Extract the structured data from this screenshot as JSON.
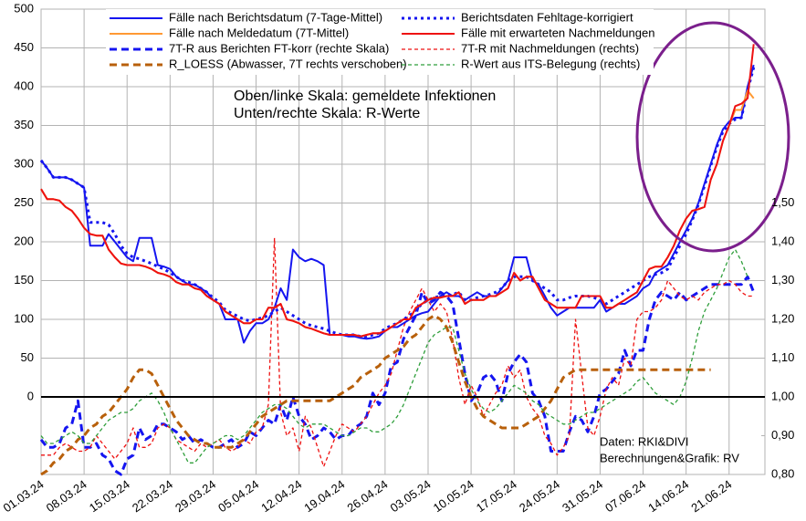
{
  "chart_data": {
    "type": "line",
    "annotations": [
      "Oben/linke Skala: gemeldete Infektionen",
      "Unten/rechte Skala: R-Werte",
      "Daten: RKI&DIVI",
      "Berechnungen&Grafik: RV"
    ],
    "categories": [
      "01.03.24",
      null,
      null,
      null,
      null,
      null,
      null,
      "08.03.24",
      null,
      null,
      null,
      null,
      null,
      null,
      "15.03.24",
      null,
      null,
      null,
      null,
      null,
      null,
      "22.03.24",
      null,
      null,
      null,
      null,
      null,
      null,
      "29.03.24",
      null,
      null,
      null,
      null,
      null,
      null,
      "05.04.24",
      null,
      null,
      null,
      null,
      null,
      null,
      "12.04.24",
      null,
      null,
      null,
      null,
      null,
      null,
      "19.04.24",
      null,
      null,
      null,
      null,
      null,
      null,
      "26.04.24",
      null,
      null,
      null,
      null,
      null,
      null,
      "03.05.24",
      null,
      null,
      null,
      null,
      null,
      null,
      "10.05.24",
      null,
      null,
      null,
      null,
      null,
      null,
      "17.05.24",
      null,
      null,
      null,
      null,
      null,
      null,
      "24.05.24",
      null,
      null,
      null,
      null,
      null,
      null,
      "31.05.24",
      null,
      null,
      null,
      null,
      null,
      null,
      "07.06.24",
      null,
      null,
      null,
      null,
      null,
      null,
      "14.06.24",
      null,
      null,
      null,
      null,
      null,
      null,
      "21.06.24",
      null,
      null,
      null,
      null
    ],
    "ylim": [
      -100,
      500
    ],
    "yticks": [
      0,
      50,
      100,
      150,
      200,
      250,
      300,
      350,
      400,
      450,
      500
    ],
    "y2lim": [
      0.8,
      2.0
    ],
    "y2ticks": [
      {
        "value": 0.8,
        "label": "0,80"
      },
      {
        "value": 0.9,
        "label": "0,90"
      },
      {
        "value": 1.0,
        "label": "1,00"
      },
      {
        "value": 1.1,
        "label": "1,10"
      },
      {
        "value": 1.2,
        "label": "1,20"
      },
      {
        "value": 1.3,
        "label": "1,30"
      },
      {
        "value": 1.4,
        "label": "1,40"
      },
      {
        "value": 1.5,
        "label": "1,50"
      }
    ],
    "grid": true,
    "series": [
      {
        "name": "Fälle nach Berichtsdatum (7-Tage-Mittel)",
        "color": "#1515f0",
        "style": "solid",
        "values": [
          305,
          295,
          283,
          283,
          283,
          280,
          275,
          270,
          195,
          195,
          195,
          210,
          200,
          190,
          180,
          175,
          205,
          205,
          205,
          170,
          168,
          165,
          155,
          150,
          145,
          145,
          140,
          135,
          125,
          120,
          100,
          100,
          100,
          70,
          85,
          95,
          95,
          100,
          115,
          140,
          125,
          190,
          180,
          175,
          178,
          175,
          170,
          80,
          80,
          80,
          78,
          78,
          76,
          75,
          76,
          78,
          85,
          90,
          90,
          95,
          100,
          105,
          108,
          110,
          120,
          130,
          135,
          130,
          130,
          125,
          130,
          135,
          130,
          130,
          130,
          140,
          150,
          180,
          180,
          180,
          150,
          145,
          130,
          115,
          105,
          110,
          115,
          115,
          115,
          115,
          115,
          125,
          110,
          115,
          120,
          120,
          125,
          130,
          140,
          145,
          160,
          165,
          170,
          185,
          200,
          215,
          230,
          250,
          275,
          300,
          325,
          345,
          355,
          360,
          360,
          400,
          428
        ]
      },
      {
        "name": "Berichtsdaten Fehltage-korrigiert",
        "color": "#1515f0",
        "style": "dotted",
        "values": [
          305,
          295,
          283,
          283,
          283,
          280,
          275,
          270,
          225,
          225,
          225,
          222,
          210,
          195,
          185,
          180,
          178,
          175,
          172,
          168,
          165,
          160,
          155,
          150,
          148,
          145,
          140,
          135,
          128,
          122,
          112,
          108,
          104,
          100,
          98,
          100,
          102,
          105,
          110,
          115,
          110,
          105,
          100,
          95,
          92,
          90,
          88,
          85,
          82,
          80,
          80,
          80,
          78,
          78,
          80,
          82,
          88,
          92,
          95,
          100,
          105,
          112,
          120,
          125,
          128,
          130,
          130,
          132,
          135,
          125,
          125,
          128,
          130,
          132,
          135,
          140,
          150,
          155,
          155,
          155,
          150,
          145,
          140,
          135,
          125,
          125,
          128,
          130,
          130,
          130,
          128,
          125,
          120,
          125,
          130,
          135,
          140,
          145,
          150,
          155,
          158,
          160,
          165,
          180,
          195,
          210,
          228,
          248,
          272,
          298,
          322,
          342,
          352,
          358,
          360,
          395,
          425
        ]
      },
      {
        "name": "Fälle nach Meldedatum (7T-Mittel)",
        "color": "#ff9933",
        "style": "solid",
        "values": [
          268,
          255,
          255,
          253,
          245,
          240,
          230,
          218,
          210,
          208,
          208,
          190,
          180,
          172,
          170,
          170,
          170,
          168,
          165,
          160,
          158,
          155,
          148,
          145,
          145,
          140,
          138,
          130,
          125,
          120,
          110,
          105,
          100,
          95,
          95,
          100,
          100,
          115,
          115,
          120,
          100,
          98,
          95,
          90,
          88,
          85,
          82,
          80,
          80,
          80,
          80,
          80,
          78,
          80,
          82,
          82,
          85,
          90,
          95,
          100,
          100,
          115,
          120,
          125,
          128,
          128,
          130,
          130,
          135,
          120,
          125,
          125,
          125,
          130,
          130,
          135,
          140,
          160,
          150,
          155,
          155,
          140,
          125,
          120,
          115,
          115,
          115,
          115,
          130,
          130,
          130,
          130,
          115,
          115,
          120,
          125,
          130,
          135,
          150,
          165,
          168,
          168,
          180,
          195,
          215,
          230,
          240,
          242,
          245,
          280,
          300,
          330,
          350,
          370,
          370,
          395,
          385
        ]
      },
      {
        "name": "Fälle mit erwarteten Nachmeldungen",
        "color": "#ee1111",
        "style": "solid",
        "values": [
          268,
          255,
          255,
          253,
          245,
          240,
          230,
          218,
          210,
          208,
          208,
          190,
          180,
          172,
          170,
          170,
          170,
          168,
          165,
          160,
          158,
          155,
          148,
          145,
          145,
          140,
          138,
          130,
          125,
          120,
          110,
          105,
          100,
          95,
          95,
          100,
          100,
          115,
          115,
          120,
          100,
          98,
          95,
          90,
          88,
          85,
          82,
          80,
          80,
          80,
          80,
          80,
          78,
          80,
          82,
          82,
          85,
          90,
          95,
          100,
          100,
          115,
          120,
          125,
          128,
          128,
          130,
          130,
          135,
          120,
          125,
          125,
          125,
          130,
          130,
          135,
          140,
          160,
          150,
          155,
          155,
          140,
          125,
          120,
          115,
          115,
          115,
          115,
          130,
          130,
          130,
          130,
          115,
          115,
          120,
          125,
          130,
          135,
          150,
          165,
          168,
          168,
          180,
          195,
          215,
          230,
          240,
          242,
          245,
          280,
          300,
          330,
          350,
          375,
          378,
          385,
          455
        ]
      },
      {
        "name": "7T-R aus Berichten FT-korr (rechte Skala)",
        "color": "#1515f0",
        "style": "dashed",
        "axis": "y2",
        "values": [
          0.89,
          0.87,
          0.87,
          0.88,
          0.92,
          0.93,
          0.99,
          0.87,
          0.87,
          0.88,
          0.85,
          0.84,
          0.81,
          0.8,
          0.84,
          0.85,
          0.92,
          0.89,
          0.9,
          0.93,
          0.93,
          0.92,
          0.91,
          0.89,
          0.9,
          0.88,
          0.89,
          0.88,
          0.87,
          0.87,
          0.88,
          0.89,
          0.87,
          0.88,
          0.91,
          0.9,
          0.92,
          0.94,
          0.93,
          0.98,
          0.94,
          1.0,
          0.95,
          0.93,
          0.89,
          0.9,
          0.92,
          0.91,
          0.89,
          0.9,
          0.9,
          0.92,
          0.93,
          0.95,
          1.01,
          0.98,
          1.01,
          1.08,
          1.09,
          1.15,
          1.18,
          1.21,
          1.27,
          1.24,
          1.25,
          1.27,
          1.26,
          1.24,
          1.15,
          1.06,
          0.99,
          1.01,
          1.05,
          1.06,
          1.04,
          0.99,
          1.06,
          1.09,
          1.11,
          1.09,
          1.01,
          0.99,
          0.95,
          0.86,
          0.86,
          0.86,
          0.91,
          0.95,
          0.94,
          0.91,
          0.95,
          1.01,
          1.02,
          1.04,
          1.06,
          1.12,
          1.08,
          1.12,
          1.12,
          1.2,
          1.25,
          1.27,
          1.26,
          1.25,
          1.27,
          1.25,
          1.26,
          1.27,
          1.28,
          1.29,
          1.29,
          1.29,
          1.29,
          1.29,
          1.29,
          1.31,
          1.27
        ]
      },
      {
        "name": "7T-R mit Nachmeldungen (rechts)",
        "color": "#ee1111",
        "style": "dashed-thin",
        "axis": "y2",
        "values": [
          0.85,
          0.85,
          0.85,
          0.87,
          0.88,
          0.87,
          0.86,
          0.86,
          0.87,
          0.9,
          0.88,
          0.86,
          0.84,
          0.86,
          0.88,
          0.92,
          0.87,
          0.87,
          0.88,
          0.92,
          0.93,
          0.92,
          0.89,
          0.88,
          0.87,
          0.86,
          0.88,
          0.87,
          0.88,
          0.89,
          0.87,
          0.86,
          0.87,
          0.89,
          0.88,
          0.91,
          0.92,
          0.98,
          1.41,
          0.96,
          0.9,
          0.92,
          0.86,
          0.95,
          0.92,
          0.87,
          0.82,
          0.86,
          0.9,
          0.93,
          0.92,
          0.91,
          0.93,
          0.95,
          0.98,
          1.01,
          1.03,
          1.06,
          1.12,
          1.18,
          1.22,
          1.25,
          1.28,
          1.25,
          1.22,
          1.24,
          1.22,
          1.15,
          1.05,
          0.98,
          1.03,
          1.0,
          0.95,
          0.98,
          1.01,
          1.03,
          1.08,
          1.05,
          1.07,
          1.0,
          0.97,
          0.95,
          0.9,
          0.88,
          0.85,
          0.87,
          0.9,
          1.2,
          1.06,
          0.92,
          0.9,
          0.95,
          1.02,
          1.05,
          1.03,
          1.1,
          1.08,
          1.2,
          1.22,
          1.22,
          1.23,
          1.25,
          1.3,
          1.28,
          1.26,
          1.25,
          1.26,
          1.25,
          1.27,
          1.28,
          1.29,
          1.29,
          1.3,
          1.29,
          1.27,
          1.26,
          1.26
        ]
      },
      {
        "name": "R_LOESS (Abwasser, 7T rechts verschoben)",
        "color": "#b8600b",
        "style": "dashed",
        "axis": "y2",
        "values": [
          0.8,
          0.81,
          0.83,
          0.84,
          0.86,
          0.87,
          0.89,
          0.9,
          0.92,
          0.93,
          0.95,
          0.96,
          0.98,
          1.0,
          1.02,
          1.05,
          1.07,
          1.07,
          1.06,
          1.03,
          1.0,
          0.97,
          0.94,
          0.92,
          0.9,
          0.89,
          0.88,
          0.88,
          0.87,
          0.87,
          0.87,
          0.87,
          0.88,
          0.89,
          0.91,
          0.93,
          0.95,
          0.96,
          0.97,
          0.98,
          0.99,
          0.99,
          0.99,
          0.99,
          0.99,
          0.99,
          0.99,
          0.99,
          1.0,
          1.01,
          1.02,
          1.03,
          1.05,
          1.06,
          1.07,
          1.08,
          1.1,
          1.11,
          1.12,
          1.13,
          1.15,
          1.16,
          1.18,
          1.2,
          1.21,
          1.2,
          1.18,
          1.14,
          1.09,
          1.04,
          1.0,
          0.97,
          0.95,
          0.94,
          0.93,
          0.92,
          0.92,
          0.92,
          0.92,
          0.93,
          0.94,
          0.95,
          0.97,
          0.99,
          1.02,
          1.05,
          1.06,
          1.07,
          1.07,
          1.07,
          1.07,
          1.07,
          1.07,
          1.07,
          1.07,
          1.07,
          1.07,
          1.07,
          1.07,
          1.07,
          1.07,
          1.07,
          1.07,
          1.07,
          1.07,
          1.07,
          1.07,
          1.07,
          1.07,
          1.07,
          null,
          null,
          null,
          null,
          null,
          null,
          null
        ]
      },
      {
        "name": "R-Wert aus ITS-Belegung (rechts)",
        "color": "#2e9e3a",
        "style": "dashed-thin",
        "axis": "y2",
        "values": [
          0.9,
          0.88,
          0.88,
          0.89,
          0.9,
          0.91,
          0.9,
          0.88,
          0.88,
          0.9,
          0.92,
          0.94,
          0.95,
          0.96,
          0.96,
          0.97,
          0.99,
          1.0,
          1.01,
          0.99,
          0.96,
          0.92,
          0.89,
          0.86,
          0.83,
          0.83,
          0.85,
          0.87,
          0.88,
          0.89,
          0.9,
          0.9,
          0.89,
          0.9,
          0.92,
          0.94,
          0.96,
          0.97,
          0.98,
          0.98,
          0.97,
          0.95,
          0.93,
          0.92,
          0.93,
          0.93,
          0.93,
          0.92,
          0.91,
          0.9,
          0.9,
          0.91,
          0.92,
          0.92,
          0.91,
          0.91,
          0.92,
          0.93,
          0.95,
          0.98,
          1.02,
          1.06,
          1.1,
          1.14,
          1.16,
          1.17,
          1.18,
          1.18,
          1.12,
          1.06,
          1.02,
          0.99,
          0.97,
          0.96,
          0.97,
          0.99,
          1.01,
          1.03,
          1.02,
          1.01,
          0.99,
          0.98,
          0.96,
          0.95,
          0.94,
          0.93,
          0.93,
          0.94,
          0.95,
          0.96,
          0.96,
          0.97,
          0.98,
          0.99,
          1.0,
          1.01,
          1.02,
          1.04,
          1.05,
          1.03,
          1.01,
          1.0,
          0.99,
          0.98,
          1.0,
          1.04,
          1.1,
          1.17,
          1.22,
          1.25,
          1.28,
          1.32,
          1.36,
          1.38,
          1.35,
          1.31,
          null
        ]
      }
    ]
  }
}
